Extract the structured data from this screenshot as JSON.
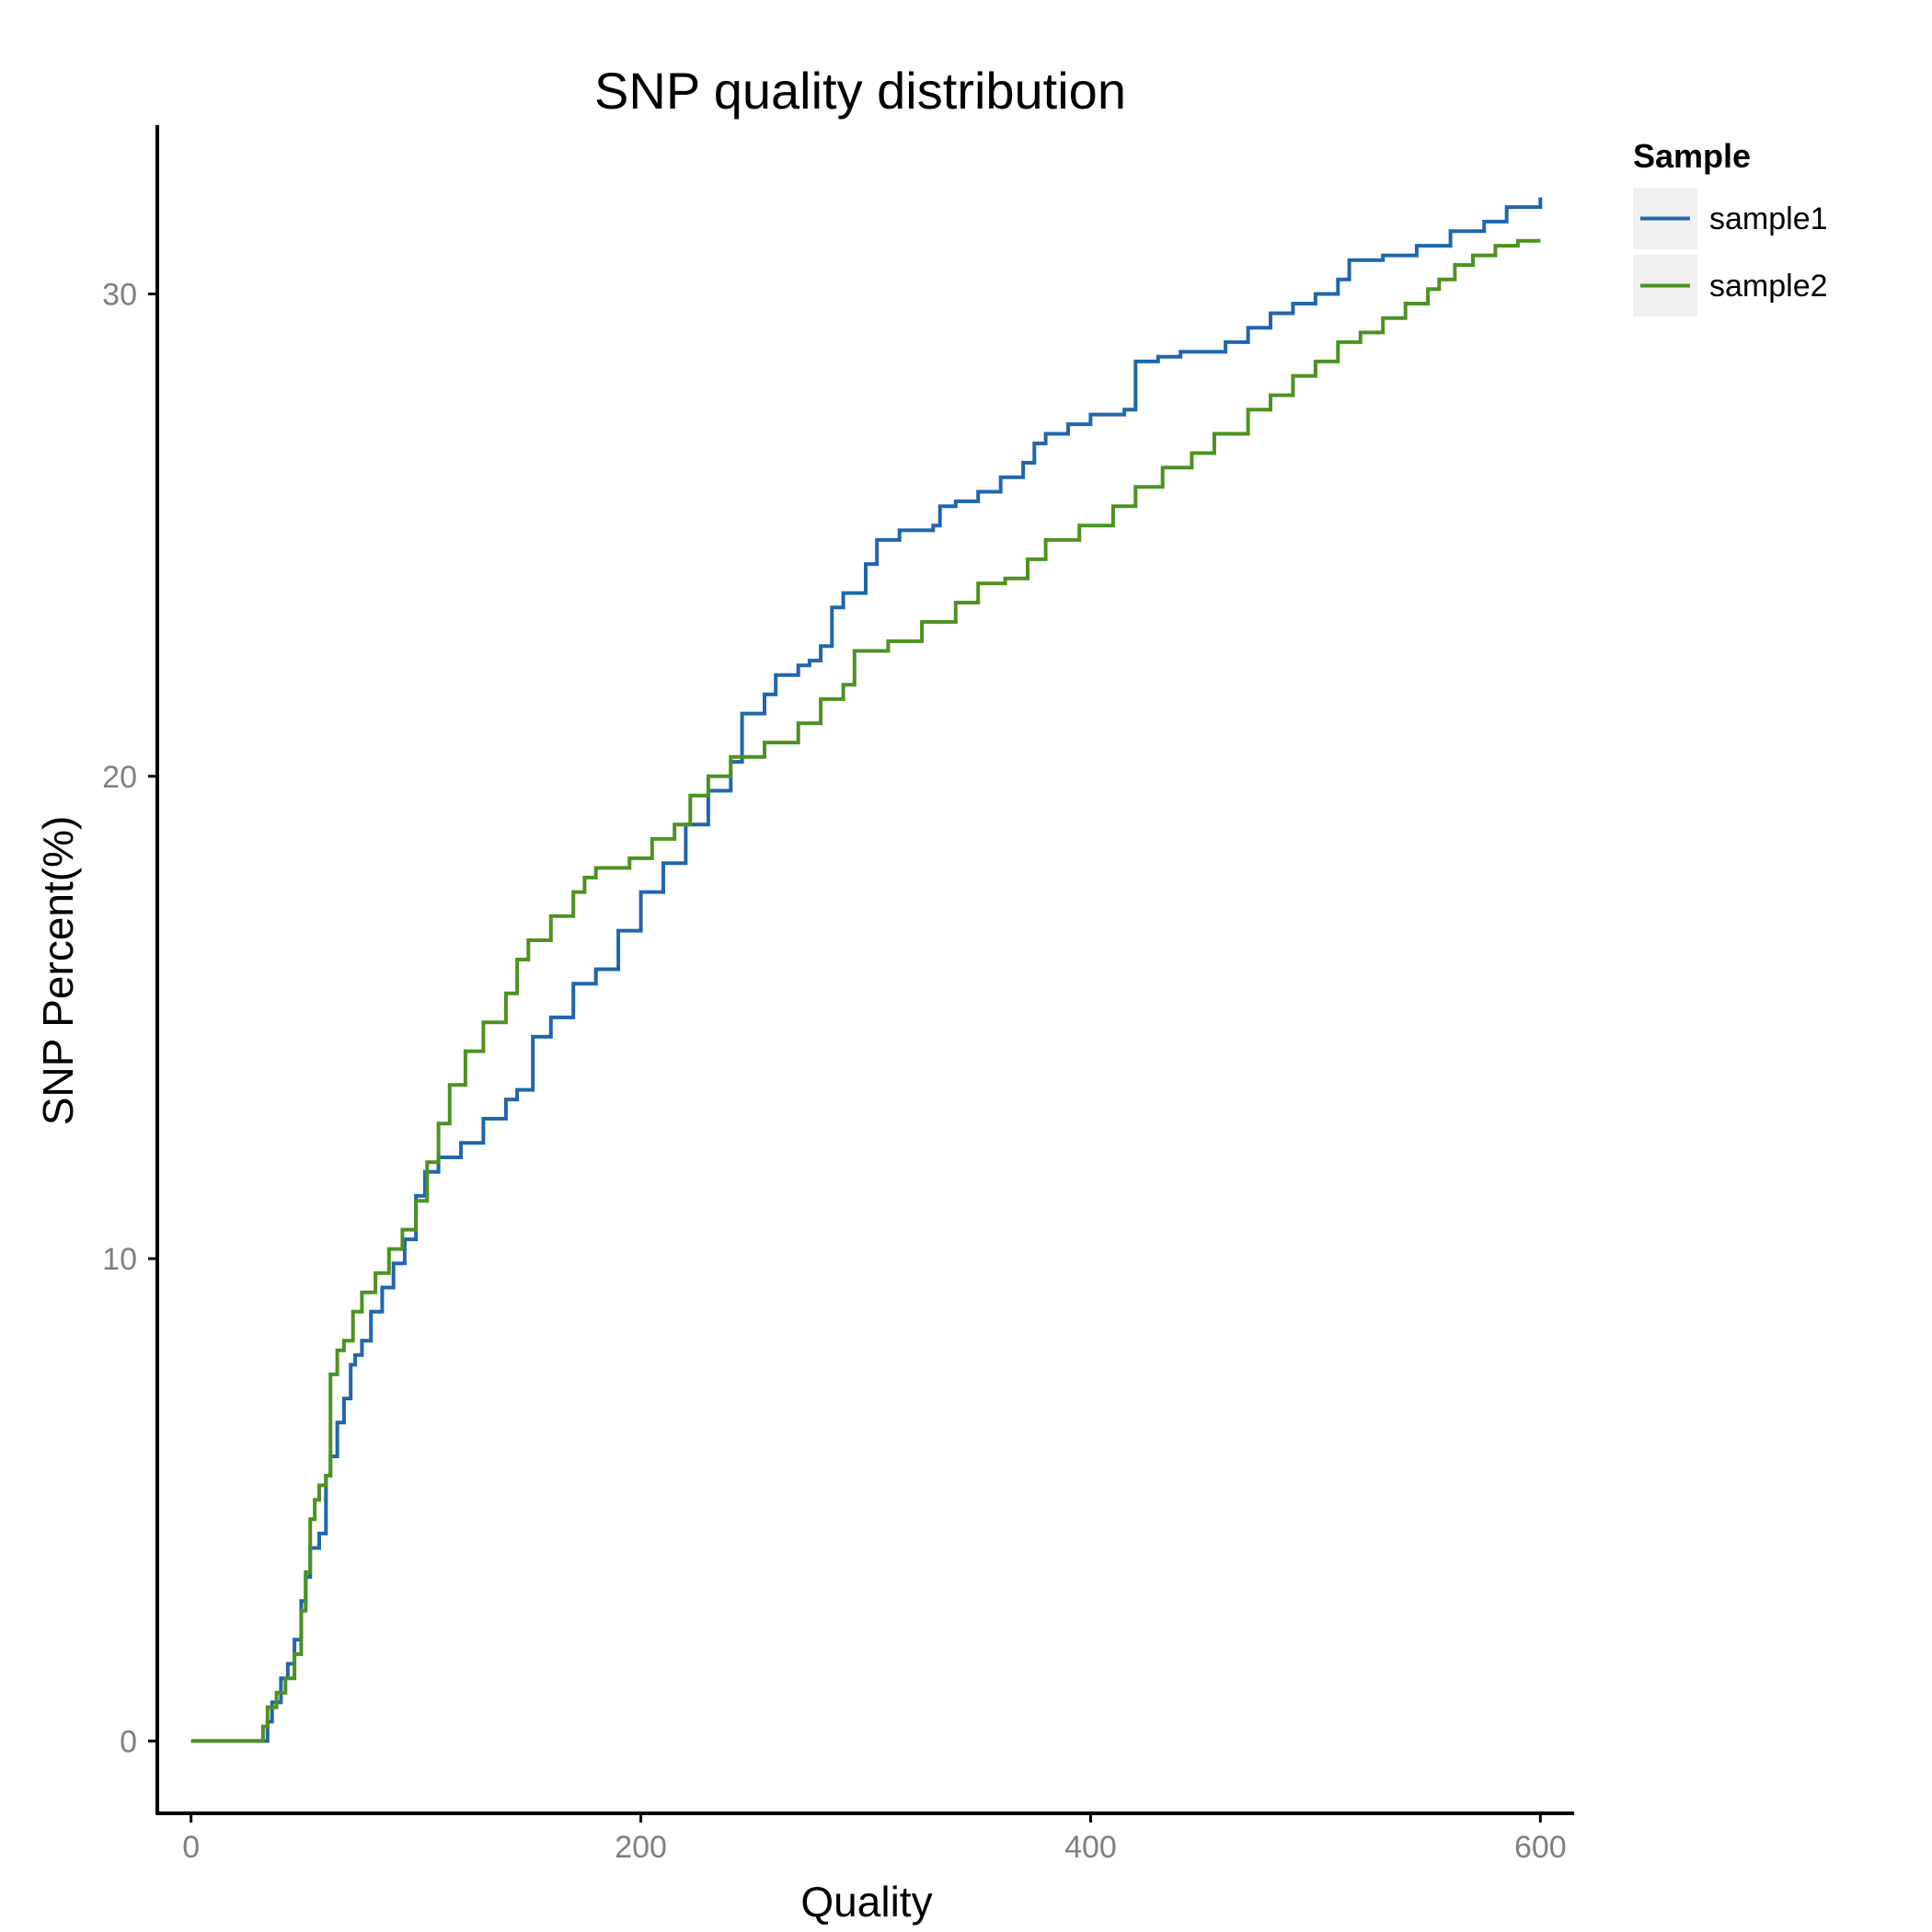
{
  "chart_data": {
    "type": "line",
    "title": "SNP quality distribution",
    "xlabel": "Quality",
    "ylabel": "SNP Percent(%)",
    "xlim": [
      -15,
      615
    ],
    "ylim": [
      -1.5,
      33.5
    ],
    "xticks": [
      0,
      200,
      400,
      600
    ],
    "yticks": [
      0,
      10,
      20,
      30
    ],
    "grid": false,
    "legend": {
      "title": "Sample",
      "position": "right-top"
    },
    "step": true,
    "series": [
      {
        "name": "sample1",
        "color": "#2166ac",
        "points": [
          [
            0,
            0
          ],
          [
            33,
            0
          ],
          [
            34,
            0.4
          ],
          [
            36,
            0.8
          ],
          [
            40,
            1.3
          ],
          [
            43,
            1.6
          ],
          [
            46,
            2.1
          ],
          [
            49,
            2.9
          ],
          [
            51,
            3.4
          ],
          [
            53,
            4.0
          ],
          [
            57,
            4.3
          ],
          [
            60,
            5.5
          ],
          [
            62,
            5.9
          ],
          [
            65,
            6.6
          ],
          [
            68,
            7.1
          ],
          [
            71,
            7.8
          ],
          [
            73,
            8.0
          ],
          [
            76,
            8.3
          ],
          [
            80,
            8.9
          ],
          [
            85,
            9.4
          ],
          [
            90,
            9.9
          ],
          [
            95,
            10.4
          ],
          [
            100,
            11.3
          ],
          [
            104,
            11.8
          ],
          [
            110,
            12.1
          ],
          [
            120,
            12.4
          ],
          [
            130,
            12.9
          ],
          [
            140,
            13.3
          ],
          [
            145,
            13.5
          ],
          [
            152,
            14.6
          ],
          [
            160,
            15.0
          ],
          [
            170,
            15.7
          ],
          [
            180,
            16.0
          ],
          [
            190,
            16.8
          ],
          [
            200,
            17.6
          ],
          [
            210,
            18.2
          ],
          [
            220,
            19.0
          ],
          [
            230,
            19.7
          ],
          [
            240,
            20.3
          ],
          [
            245,
            21.3
          ],
          [
            255,
            21.7
          ],
          [
            260,
            22.1
          ],
          [
            270,
            22.3
          ],
          [
            275,
            22.4
          ],
          [
            280,
            22.7
          ],
          [
            285,
            23.5
          ],
          [
            290,
            23.8
          ],
          [
            300,
            24.4
          ],
          [
            305,
            24.9
          ],
          [
            315,
            25.1
          ],
          [
            330,
            25.2
          ],
          [
            333,
            25.6
          ],
          [
            340,
            25.7
          ],
          [
            350,
            25.9
          ],
          [
            360,
            26.2
          ],
          [
            370,
            26.5
          ],
          [
            375,
            26.9
          ],
          [
            380,
            27.1
          ],
          [
            390,
            27.3
          ],
          [
            400,
            27.5
          ],
          [
            415,
            27.6
          ],
          [
            420,
            28.6
          ],
          [
            430,
            28.7
          ],
          [
            440,
            28.8
          ],
          [
            460,
            29.0
          ],
          [
            470,
            29.3
          ],
          [
            480,
            29.6
          ],
          [
            490,
            29.8
          ],
          [
            500,
            30.0
          ],
          [
            510,
            30.3
          ],
          [
            515,
            30.7
          ],
          [
            530,
            30.8
          ],
          [
            545,
            31.0
          ],
          [
            560,
            31.3
          ],
          [
            575,
            31.5
          ],
          [
            585,
            31.8
          ],
          [
            600,
            32.0
          ]
        ]
      },
      {
        "name": "sample2",
        "color": "#4d9221",
        "points": [
          [
            0,
            0
          ],
          [
            30,
            0
          ],
          [
            32,
            0.3
          ],
          [
            34,
            0.7
          ],
          [
            38,
            1.0
          ],
          [
            42,
            1.3
          ],
          [
            46,
            1.8
          ],
          [
            49,
            2.7
          ],
          [
            51,
            3.5
          ],
          [
            53,
            4.6
          ],
          [
            55,
            5.0
          ],
          [
            57,
            5.3
          ],
          [
            60,
            5.5
          ],
          [
            62,
            7.6
          ],
          [
            65,
            8.1
          ],
          [
            68,
            8.3
          ],
          [
            72,
            8.9
          ],
          [
            76,
            9.3
          ],
          [
            82,
            9.7
          ],
          [
            88,
            10.2
          ],
          [
            94,
            10.6
          ],
          [
            100,
            11.2
          ],
          [
            105,
            12.0
          ],
          [
            110,
            12.8
          ],
          [
            115,
            13.6
          ],
          [
            122,
            14.3
          ],
          [
            130,
            14.9
          ],
          [
            140,
            15.5
          ],
          [
            145,
            16.2
          ],
          [
            150,
            16.6
          ],
          [
            160,
            17.1
          ],
          [
            170,
            17.6
          ],
          [
            175,
            17.9
          ],
          [
            180,
            18.1
          ],
          [
            195,
            18.3
          ],
          [
            205,
            18.7
          ],
          [
            215,
            19.0
          ],
          [
            222,
            19.6
          ],
          [
            230,
            20.0
          ],
          [
            240,
            20.4
          ],
          [
            255,
            20.7
          ],
          [
            270,
            21.1
          ],
          [
            280,
            21.6
          ],
          [
            290,
            21.9
          ],
          [
            295,
            22.6
          ],
          [
            310,
            22.8
          ],
          [
            325,
            23.2
          ],
          [
            340,
            23.6
          ],
          [
            350,
            24.0
          ],
          [
            362,
            24.1
          ],
          [
            372,
            24.5
          ],
          [
            380,
            24.9
          ],
          [
            395,
            25.2
          ],
          [
            410,
            25.6
          ],
          [
            420,
            26.0
          ],
          [
            432,
            26.4
          ],
          [
            445,
            26.7
          ],
          [
            455,
            27.1
          ],
          [
            470,
            27.6
          ],
          [
            480,
            27.9
          ],
          [
            490,
            28.3
          ],
          [
            500,
            28.6
          ],
          [
            510,
            29.0
          ],
          [
            520,
            29.2
          ],
          [
            530,
            29.5
          ],
          [
            540,
            29.8
          ],
          [
            550,
            30.1
          ],
          [
            555,
            30.3
          ],
          [
            562,
            30.6
          ],
          [
            570,
            30.8
          ],
          [
            580,
            31.0
          ],
          [
            590,
            31.1
          ],
          [
            600,
            31.1
          ]
        ]
      }
    ]
  }
}
